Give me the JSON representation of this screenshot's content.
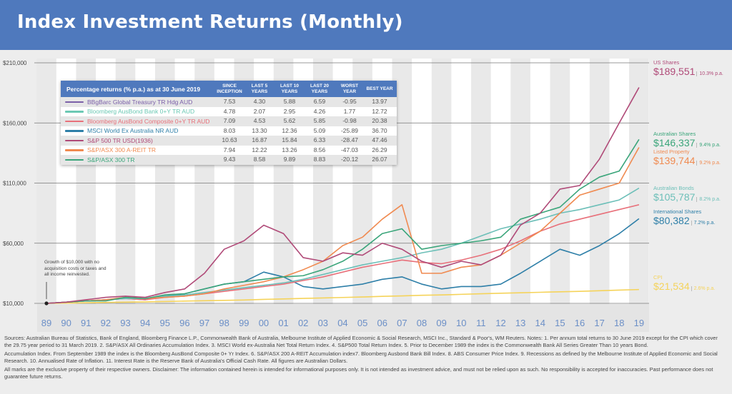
{
  "header": {
    "title": "Index Investment Returns (Monthly)"
  },
  "colors": {
    "header": "#4f79bd",
    "us_shares": "#b04a78",
    "aus_shares": "#3aa57a",
    "listed_property": "#f08a50",
    "aus_bonds": "#6cbfb8",
    "bonds_composite": "#e8707a",
    "intl_shares": "#2e7fa8",
    "cpi": "#f5d35a",
    "global_treasury": "#7a5fa8"
  },
  "chart_data": {
    "type": "line",
    "categories": [
      "89",
      "90",
      "91",
      "92",
      "93",
      "94",
      "95",
      "96",
      "97",
      "98",
      "99",
      "00",
      "01",
      "02",
      "03",
      "04",
      "05",
      "06",
      "07",
      "08",
      "09",
      "10",
      "11",
      "12",
      "13",
      "14",
      "15",
      "16",
      "17",
      "18",
      "19"
    ],
    "y_ticks": [
      {
        "value": 10000,
        "label": "$10,000"
      },
      {
        "value": 60000,
        "label": "$60,000"
      },
      {
        "value": 110000,
        "label": "$110,000"
      },
      {
        "value": 160000,
        "label": "$160,000"
      },
      {
        "value": 210000,
        "label": "$210,000"
      }
    ],
    "ylim": [
      10000,
      210000
    ],
    "grid": true,
    "series": [
      {
        "name": "US Shares",
        "color": "#b04a78",
        "end_value": "$189,551",
        "rate": "10.3% p.a.",
        "values": [
          10,
          11,
          13,
          15,
          16,
          15,
          19,
          22,
          35,
          55,
          62,
          75,
          68,
          48,
          45,
          52,
          50,
          60,
          55,
          45,
          40,
          45,
          42,
          50,
          75,
          85,
          105,
          108,
          130,
          160,
          189.5
        ]
      },
      {
        "name": "Australian Shares",
        "color": "#3aa57a",
        "end_value": "$146,337",
        "rate": "9.4% p.a.",
        "values": [
          10,
          11,
          12,
          12,
          15,
          14,
          17,
          18,
          22,
          26,
          28,
          30,
          32,
          33,
          38,
          45,
          55,
          68,
          72,
          55,
          58,
          60,
          62,
          65,
          80,
          85,
          90,
          105,
          115,
          120,
          146.3
        ]
      },
      {
        "name": "Listed Property",
        "color": "#f08a50",
        "end_value": "$139,744",
        "rate": "9.2% p.a.",
        "values": [
          10,
          11,
          12,
          13,
          15,
          14,
          15,
          16,
          18,
          22,
          25,
          28,
          32,
          38,
          45,
          58,
          65,
          80,
          92,
          35,
          35,
          40,
          42,
          50,
          60,
          70,
          85,
          100,
          105,
          110,
          139.7
        ]
      },
      {
        "name": "Australian Bonds",
        "color": "#6cbfb8",
        "end_value": "$105,787",
        "rate": "8.2% p.a.",
        "values": [
          10,
          11,
          12,
          13,
          14,
          14,
          16,
          17,
          19,
          21,
          23,
          25,
          27,
          30,
          34,
          38,
          42,
          45,
          48,
          52,
          55,
          60,
          66,
          72,
          76,
          80,
          85,
          88,
          92,
          96,
          105.8
        ]
      },
      {
        "name": "",
        "color": "#e8707a",
        "values": [
          10,
          11,
          12,
          13,
          14,
          13,
          15,
          16,
          18,
          20,
          22,
          24,
          26,
          29,
          32,
          36,
          40,
          43,
          46,
          44,
          43,
          46,
          50,
          55,
          62,
          70,
          76,
          80,
          84,
          88,
          92
        ]
      },
      {
        "name": "International Shares",
        "color": "#2e7fa8",
        "end_value": "$80,382",
        "rate": "7.2% p.a.",
        "values": [
          10,
          11,
          12,
          13,
          14,
          13,
          16,
          18,
          22,
          26,
          28,
          36,
          32,
          24,
          22,
          24,
          26,
          30,
          32,
          26,
          22,
          24,
          24,
          26,
          35,
          45,
          55,
          50,
          58,
          68,
          80.4
        ]
      },
      {
        "name": "CPI",
        "color": "#f5d35a",
        "end_value": "$21,534",
        "rate": "2.6% p.a.",
        "values": [
          10,
          10.2,
          10.5,
          10.8,
          11,
          11.2,
          11.5,
          11.9,
          12.2,
          12.5,
          12.8,
          13.3,
          13.7,
          14.1,
          14.5,
          14.9,
          15.3,
          15.8,
          16.2,
          16.7,
          17,
          17.5,
          18,
          18.4,
          18.8,
          19.2,
          19.6,
          20,
          20.5,
          21,
          21.5
        ]
      }
    ],
    "annotation": "Growth of $10,000 with no acquisition costs or taxes and all income reinvested."
  },
  "table": {
    "title": "Percentage returns (% p.a.) as at 30 June 2019",
    "columns": [
      "SINCE INCEPTION",
      "LAST 5 YEARS",
      "LAST 10 YEARS",
      "LAST 20 YEARS",
      "WORST YEAR",
      "BEST YEAR"
    ],
    "rows": [
      {
        "name": "BBgBarc Global Treasury TR Hdg AUD",
        "color": "#7a5fa8",
        "values": [
          "7.53",
          "4.30",
          "5.88",
          "6.59",
          "-0.95",
          "13.97"
        ]
      },
      {
        "name": "Bloomberg AusBond Bank 0+Y TR AUD",
        "color": "#6cc9b4",
        "values": [
          "4.78",
          "2.07",
          "2.95",
          "4.26",
          "1.77",
          "12.72"
        ]
      },
      {
        "name": "Bloomberg AusBond Composite 0+Y TR AUD",
        "color": "#e8707a",
        "values": [
          "7.09",
          "4.53",
          "5.62",
          "5.85",
          "-0.98",
          "20.38"
        ]
      },
      {
        "name": "MSCI World Ex Australia NR AUD",
        "color": "#2e7fa8",
        "values": [
          "8.03",
          "13.30",
          "12.36",
          "5.09",
          "-25.89",
          "36.70"
        ]
      },
      {
        "name": "S&P 500 TR USD(1936)",
        "color": "#b04a78",
        "values": [
          "10.63",
          "16.87",
          "15.84",
          "6.33",
          "-28.47",
          "47.46"
        ]
      },
      {
        "name": "S&P/ASX 300 A-REIT TR",
        "color": "#f08a50",
        "values": [
          "7.94",
          "12.22",
          "13.26",
          "8.56",
          "-47.03",
          "26.29"
        ]
      },
      {
        "name": "S&P/ASX 300 TR",
        "color": "#3aa57a",
        "values": [
          "9.43",
          "8.58",
          "9.89",
          "8.83",
          "-20.12",
          "26.07"
        ]
      }
    ]
  },
  "footer": [
    "Sources: Australian Bureau of Statistics, Bank of England, Bloomberg Finance L.P., Commonwealth Bank of Australia, Melbourne Institute of Applied Economic & Social Research, MSCI Inc., Standard & Poor's, WM Reuters. Notes: 1. Per annum total returns to 30 June 2019 except for the CPI which cover the 29.75 year period to 31 March 2019. 2. S&P/ASX All Ordinaries Accumulation Index. 3. MSCI World ex-Australia Net Total Return Index. 4. S&P500 Total Return Index. 5. Prior to December 1989 the index is the Commonwealth Bank All Series Greater Than 10 years Bond.",
    "Accumulation Index. From September 1989 the index is the Bloomberg AusBond Composite 0+ Yr Index. 6. S&P/ASX 200 A-REIT Accumulation index7. Bloomberg Ausbond Bank Bill Index. 8. ABS Consumer Price Index. 9. Recessions as defined by the Melbourne Institute of Applied Economic and Social Research. 10. Annualised Rate of Inflation. 11. Interest Rate is the Reserve Bank of Australia's  Official Cash Rate. All figures are Australian Dollars.",
    "All marks are the exclusive property of their respective owners. Disclaimer: The information contained herein is intended for informational purposes only. It is not intended as investment advice, and must not be relied upon as such. No responsibility is accepted for inaccuracies. Past performance does not guarantee future returns."
  ]
}
